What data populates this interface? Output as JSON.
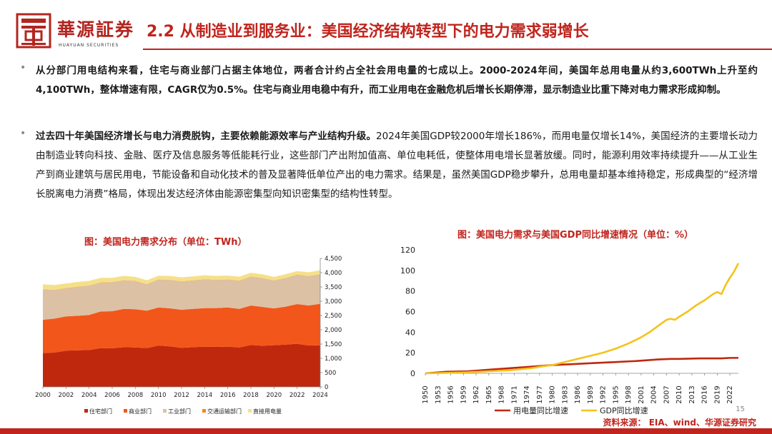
{
  "header": {
    "brand": "華源証券",
    "brand_en": "HUAYUAN SECURITIES",
    "title": "2.2 从制造业到服务业：美国经济结构转型下的电力需求弱增长"
  },
  "paragraphs": {
    "p1": "从分部门用电结构来看，住宅与商业部门占据主体地位，两者合计约占全社会用电量的七成以上。2000-2024年间，美国年总用电量从约3,600TWh上升至约4,100TWh，整体增速有限，CAGR仅为0.5%。住宅与商业用电稳中有升，而工业用电在金融危机后增长长期停滞，显示制造业比重下降对电力需求形成抑制。",
    "p2_lead": "过去四十年美国经济增长与电力消费脱钩，主要依赖能源效率与产业结构升级。",
    "p2_rest": "2024年美国GDP较2000年增长186%，而用电量仅增长14%，美国经济的主要增长动力由制造业转向科技、金融、医疗及信息服务等低能耗行业，这些部门产出附加值高、单位电耗低，使整体用电增长显著放缓。同时，能源利用效率持续提升——从工业生产到商业建筑与居民用电，节能设备和自动化技术的普及显著降低单位产出的电力需求。结果是，虽然美国GDP稳步攀升，总用电量却基本维持稳定，形成典型的“经济增长脱离电力消费”格局，体现出发达经济体由能源密集型向知识密集型的结构性转型。"
  },
  "captions": {
    "chart1": "图：美国电力需求分布（单位：TWh）",
    "chart2": "图：美国电力需求与美国GDP同比增速情况（单位：%）"
  },
  "footer": {
    "source": "资料来源： EIA、wind、华源证券研究",
    "page": "15"
  },
  "colors": {
    "accent": "#c0241d",
    "residential": "#c0280e",
    "commercial": "#f2561a",
    "industrial": "#dcc1a4",
    "transport": "#f08a1e",
    "direct": "#f5e08a",
    "gdp_line": "#f6c21a",
    "power_line": "#c0280e"
  },
  "chart_data": [
    {
      "type": "area",
      "stacked": true,
      "x": [
        2000,
        2001,
        2002,
        2003,
        2004,
        2005,
        2006,
        2007,
        2008,
        2009,
        2010,
        2011,
        2012,
        2013,
        2014,
        2015,
        2016,
        2017,
        2018,
        2019,
        2020,
        2021,
        2022,
        2023,
        2024
      ],
      "xticks": [
        2000,
        2002,
        2004,
        2006,
        2008,
        2010,
        2012,
        2014,
        2016,
        2018,
        2020,
        2022,
        2024
      ],
      "yticks": [
        0,
        500,
        1000,
        1500,
        2000,
        2500,
        3000,
        3500,
        4000,
        4500
      ],
      "ytick_labels": [
        "0",
        "500",
        "1,000",
        "1,500",
        "2,000",
        "2,500",
        "3,000",
        "3,500",
        "4,000",
        "4,500"
      ],
      "ylim": [
        0,
        4500
      ],
      "legend_position": "bottom",
      "series": [
        {
          "name": "住宅部门",
          "values": [
            1190,
            1200,
            1270,
            1280,
            1290,
            1360,
            1350,
            1390,
            1380,
            1360,
            1450,
            1420,
            1370,
            1390,
            1410,
            1400,
            1410,
            1380,
            1470,
            1440,
            1460,
            1480,
            1510,
            1450,
            1460
          ]
        },
        {
          "name": "商业部门",
          "values": [
            1160,
            1190,
            1200,
            1210,
            1230,
            1280,
            1300,
            1340,
            1340,
            1310,
            1330,
            1330,
            1330,
            1340,
            1350,
            1360,
            1370,
            1350,
            1380,
            1360,
            1290,
            1330,
            1390,
            1400,
            1450
          ]
        },
        {
          "name": "工业部门",
          "values": [
            1060,
            1000,
            980,
            1010,
            1020,
            1010,
            1010,
            1000,
            980,
            920,
            970,
            990,
            990,
            990,
            1000,
            980,
            970,
            980,
            1000,
            1000,
            970,
            1000,
            1020,
            1020,
            1030
          ]
        },
        {
          "name": "交通运输部门",
          "values": [
            8,
            8,
            8,
            8,
            8,
            8,
            8,
            8,
            8,
            8,
            8,
            8,
            8,
            8,
            8,
            8,
            8,
            8,
            8,
            8,
            7,
            7,
            7,
            7,
            7
          ]
        },
        {
          "name": "直接用电量",
          "values": [
            175,
            170,
            165,
            168,
            165,
            160,
            150,
            150,
            145,
            135,
            135,
            135,
            140,
            140,
            140,
            140,
            140,
            140,
            140,
            135,
            125,
            130,
            130,
            135,
            140
          ]
        }
      ]
    },
    {
      "type": "line",
      "xticks": [
        1950,
        1953,
        1956,
        1959,
        1962,
        1965,
        1968,
        1971,
        1974,
        1977,
        1980,
        1983,
        1986,
        1989,
        1992,
        1995,
        1998,
        2001,
        2004,
        2007,
        2010,
        2013,
        2016,
        2019,
        2022
      ],
      "xlim": [
        1950,
        2024
      ],
      "ylim": [
        0,
        120
      ],
      "yticks": [
        0,
        20,
        40,
        60,
        80,
        100,
        120
      ],
      "legend_position": "bottom",
      "series": [
        {
          "name": "用电量同比增速",
          "x": [
            1950,
            1955,
            1960,
            1965,
            1970,
            1975,
            1980,
            1985,
            1990,
            1995,
            2000,
            2005,
            2008,
            2010,
            2015,
            2020,
            2022,
            2024
          ],
          "values": [
            0,
            1.5,
            2,
            3.5,
            5,
            6.5,
            8,
            9,
            10,
            11,
            12,
            13.5,
            14,
            14,
            14.5,
            14.5,
            15,
            15
          ]
        },
        {
          "name": "GDP同比增速",
          "x": [
            1950,
            1955,
            1960,
            1965,
            1970,
            1975,
            1978,
            1980,
            1983,
            1986,
            1989,
            1992,
            1995,
            1998,
            2001,
            2003,
            2005,
            2007,
            2008,
            2009,
            2010,
            2012,
            2014,
            2016,
            2018,
            2019,
            2020,
            2021,
            2022,
            2023,
            2024
          ],
          "values": [
            0,
            0.5,
            1,
            2,
            3,
            5,
            7,
            8,
            11,
            14,
            17,
            20,
            24,
            29,
            35,
            40,
            46,
            52,
            53,
            52,
            55,
            60,
            66,
            71,
            77,
            79,
            77,
            86,
            93,
            99,
            107
          ]
        }
      ]
    }
  ]
}
